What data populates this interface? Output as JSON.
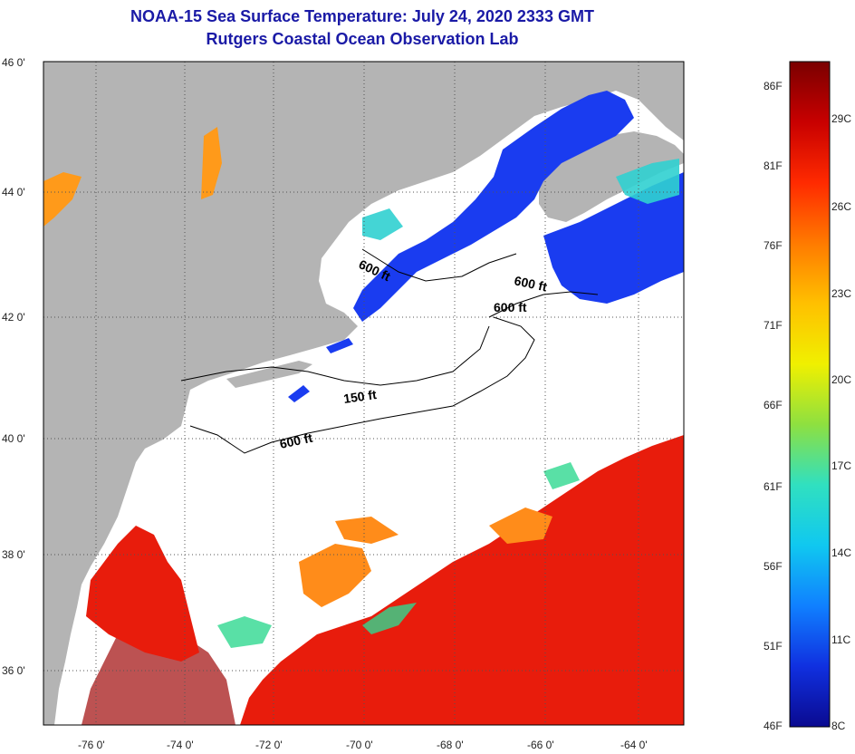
{
  "header": {
    "title": "NOAA-15 Sea Surface Temperature:  July 24, 2020 2333 GMT",
    "subtitle": "Rutgers Coastal Ocean Observation Lab"
  },
  "axes": {
    "lat_labels": [
      "46 0'",
      "44 0'",
      "42 0'",
      "40 0'",
      "38 0'",
      "36 0'"
    ],
    "lon_labels": [
      "-76 0'",
      "-74 0'",
      "-72 0'",
      "-70 0'",
      "-68 0'",
      "-66 0'",
      "-64 0'"
    ]
  },
  "contours": [
    {
      "label": "600 ft"
    },
    {
      "label": "600 ft"
    },
    {
      "label": "600 ft"
    },
    {
      "label": "150 ft"
    },
    {
      "label": "600 ft"
    }
  ],
  "colorbar": {
    "fahrenheit": [
      "86F",
      "81F",
      "76F",
      "71F",
      "66F",
      "61F",
      "56F",
      "51F",
      "46F"
    ],
    "celsius": [
      "29C",
      "26C",
      "23C",
      "20C",
      "17C",
      "14C",
      "11C",
      "8C"
    ],
    "colors": [
      "#7a0000",
      "#c80000",
      "#ff2a00",
      "#ff7a00",
      "#ffc000",
      "#f0f000",
      "#8ee040",
      "#30e0c0",
      "#10c8f0",
      "#1080ff",
      "#1030e0",
      "#0a0a90"
    ]
  },
  "colors": {
    "land": "#b4b4b4",
    "ocean": "#ffffff",
    "warm": "#e81c0c",
    "cold": "#1a3cf0",
    "title": "#1a1aa6"
  }
}
